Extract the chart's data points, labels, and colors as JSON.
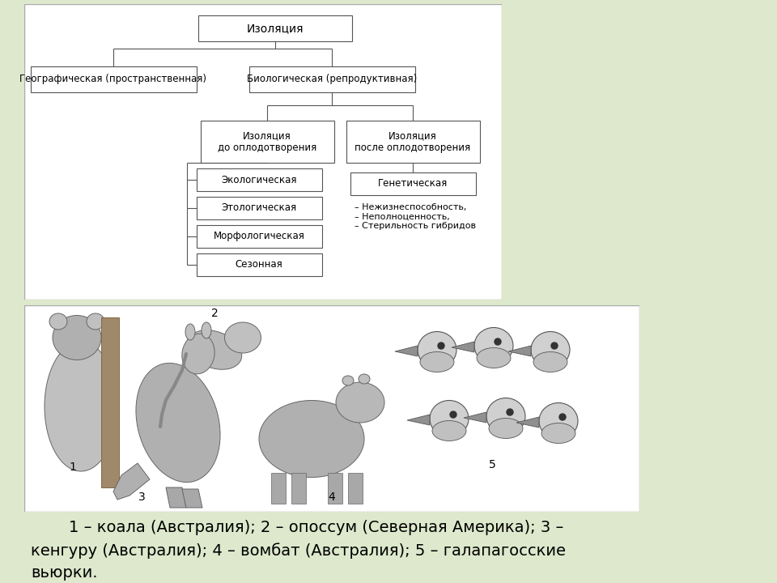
{
  "bg_color": "#dde8cc",
  "white": "#ffffff",
  "line_color": "#555555",
  "text_color": "#000000",
  "diagram_title": "Изоляция",
  "node_geo": "Географическая (пространственная)",
  "node_bio": "Биологическая (репродуктивная)",
  "node_before": "Изоляция\nдо оплодотворения",
  "node_after": "Изоляция\nпосле оплодотворения",
  "node_eco": "Экологическая",
  "node_etho": "Этологическая",
  "node_morph": "Морфологическая",
  "node_season": "Сезонная",
  "node_genetic": "Генетическая",
  "node_effects": "– Нежизнеспособность,\n– Неполноценность,\n– Стерильность гибридов",
  "caption_line1": "    1 – коала (Австралия); 2 – опоссум (Северная Америка); 3 –",
  "caption_line2": "кенгуру (Австралия); 4 – вомбат (Австралия); 5 – галапагосские",
  "caption_line3": "вьюрки."
}
